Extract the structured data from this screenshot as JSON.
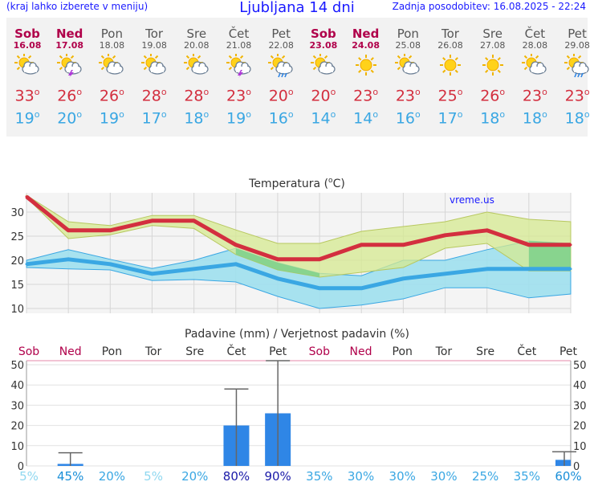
{
  "header": {
    "menu_hint": "(kraj lahko izberete v meniju)",
    "title": "Ljubljana 14 dni",
    "updated": "Zadnja posodobitev: 16.08.2025 - 22:24"
  },
  "days": [
    {
      "name": "Sob",
      "date": "16.08",
      "weekend": true,
      "icon": "sun-cloud-icon",
      "tmax": "33",
      "tmin": "19"
    },
    {
      "name": "Ned",
      "date": "17.08",
      "weekend": true,
      "icon": "sun-storm-icon",
      "tmax": "26",
      "tmin": "20"
    },
    {
      "name": "Pon",
      "date": "18.08",
      "weekend": false,
      "icon": "sun-cloud-icon",
      "tmax": "26",
      "tmin": "19"
    },
    {
      "name": "Tor",
      "date": "19.08",
      "weekend": false,
      "icon": "sun-cloud-icon",
      "tmax": "28",
      "tmin": "17"
    },
    {
      "name": "Sre",
      "date": "20.08",
      "weekend": false,
      "icon": "sun-cloud-icon",
      "tmax": "28",
      "tmin": "18"
    },
    {
      "name": "Čet",
      "date": "21.08",
      "weekend": false,
      "icon": "sun-storm-icon",
      "tmax": "23",
      "tmin": "19"
    },
    {
      "name": "Pet",
      "date": "22.08",
      "weekend": false,
      "icon": "sun-rain-icon",
      "tmax": "20",
      "tmin": "16"
    },
    {
      "name": "Sob",
      "date": "23.08",
      "weekend": true,
      "icon": "sun-cloud-icon",
      "tmax": "20",
      "tmin": "14"
    },
    {
      "name": "Ned",
      "date": "24.08",
      "weekend": true,
      "icon": "sun-icon",
      "tmax": "23",
      "tmin": "14"
    },
    {
      "name": "Pon",
      "date": "25.08",
      "weekend": false,
      "icon": "sun-cloud-icon",
      "tmax": "23",
      "tmin": "16"
    },
    {
      "name": "Tor",
      "date": "26.08",
      "weekend": false,
      "icon": "sun-icon",
      "tmax": "25",
      "tmin": "17"
    },
    {
      "name": "Sre",
      "date": "27.08",
      "weekend": false,
      "icon": "sun-icon",
      "tmax": "26",
      "tmin": "18"
    },
    {
      "name": "Čet",
      "date": "28.08",
      "weekend": false,
      "icon": "sun-cloud-icon",
      "tmax": "23",
      "tmin": "18"
    },
    {
      "name": "Pet",
      "date": "29.08",
      "weekend": false,
      "icon": "sun-rain-icon",
      "tmax": "23",
      "tmin": "18"
    }
  ],
  "temp_unit": "o",
  "colors": {
    "weekend": "#b0004a",
    "weekday": "#555555",
    "max_line": "#d32f3f",
    "min_line": "#3aa7e3",
    "max_band": "#d6ea90",
    "min_band": "#9ee0ee",
    "overlap_band": "#7dd08a",
    "bar": "#2f86e6"
  },
  "chart_data": [
    {
      "type": "line",
      "title": "Temperatura (oC)",
      "title_pre": "Temperatura (",
      "title_sup": "o",
      "title_post": "C)",
      "watermark": "vreme.us",
      "categories": [
        "16.08",
        "17.08",
        "18.08",
        "19.08",
        "20.08",
        "21.08",
        "22.08",
        "23.08",
        "24.08",
        "25.08",
        "26.08",
        "27.08",
        "28.08",
        "29.08"
      ],
      "ylim": [
        9,
        34
      ],
      "yticks": [
        10,
        15,
        20,
        25,
        30
      ],
      "series": [
        {
          "name": "max",
          "values": [
            33.2,
            26.2,
            26.2,
            28.2,
            28.2,
            23.2,
            20.2,
            20.2,
            23.2,
            23.2,
            25.2,
            26.2,
            23.2,
            23.2
          ]
        },
        {
          "name": "min",
          "values": [
            19.2,
            20.2,
            19.2,
            17.2,
            18.2,
            19.2,
            16.2,
            14.2,
            14.2,
            16.2,
            17.2,
            18.2,
            18.2,
            18.2
          ]
        }
      ],
      "max_band": {
        "upper": [
          33.5,
          28,
          27.2,
          29.3,
          29.3,
          26.3,
          23.5,
          23.5,
          26,
          27,
          28,
          30,
          28.5,
          28
        ],
        "lower": [
          33,
          24.5,
          25.3,
          27.2,
          26.6,
          21.2,
          18,
          16.5,
          17.5,
          18.5,
          22.5,
          23.5,
          17.8,
          17.8
        ]
      },
      "min_band": {
        "upper": [
          20,
          22.2,
          20.2,
          18.3,
          20,
          22.5,
          19.5,
          17.3,
          16.8,
          20,
          20,
          22.2,
          24,
          23.5
        ],
        "lower": [
          18.5,
          18.2,
          18,
          15.8,
          16,
          15.5,
          12.5,
          10,
          10.7,
          12,
          14.3,
          14.3,
          12.2,
          13
        ]
      }
    },
    {
      "type": "bar",
      "title": "Padavine (mm) / Verjetnost padavin (%)",
      "categories": [
        "Sob",
        "Ned",
        "Pon",
        "Tor",
        "Sre",
        "Čet",
        "Pet",
        "Sob",
        "Ned",
        "Pon",
        "Tor",
        "Sre",
        "Čet",
        "Pet"
      ],
      "weekend": [
        true,
        true,
        false,
        false,
        false,
        false,
        false,
        true,
        true,
        false,
        false,
        false,
        false,
        false
      ],
      "ylim": [
        0,
        52
      ],
      "yticks": [
        0,
        10,
        20,
        30,
        40,
        50
      ],
      "values": [
        0,
        1,
        0,
        0,
        0,
        20,
        26,
        0,
        0,
        0,
        0,
        0,
        0,
        3
      ],
      "error_high": [
        0,
        6.5,
        0,
        0,
        0,
        38,
        52,
        0,
        0,
        0,
        0,
        0,
        0,
        7
      ],
      "probability": [
        "5%",
        "45%",
        "20%",
        "5%",
        "20%",
        "80%",
        "90%",
        "35%",
        "30%",
        "30%",
        "30%",
        "25%",
        "35%",
        "60%"
      ],
      "probability_level": [
        0,
        2,
        1,
        0,
        1,
        3,
        3,
        1,
        1,
        1,
        1,
        1,
        1,
        2
      ]
    }
  ]
}
